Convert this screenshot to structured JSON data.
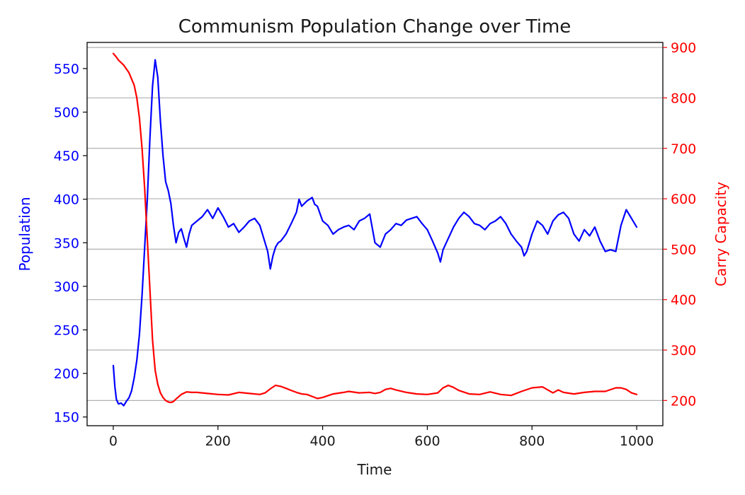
{
  "chart_data": {
    "type": "line",
    "title": "Communism Population Change over Time",
    "xlabel": "Time",
    "ylabel_left": "Population",
    "ylabel_right": "Carry Capacity",
    "xlim": [
      -50,
      1050
    ],
    "ylim_left": [
      140,
      580
    ],
    "ylim_right": [
      150,
      910
    ],
    "x_ticks": [
      0,
      200,
      400,
      600,
      800,
      1000
    ],
    "y_ticks_left": [
      150,
      200,
      250,
      300,
      350,
      400,
      450,
      500,
      550
    ],
    "y_ticks_right": [
      200,
      300,
      400,
      500,
      600,
      700,
      800,
      900
    ],
    "grid": "horizontal (right axis)",
    "colors": {
      "population": "#0000ff",
      "carry_capacity": "#ff0000",
      "text": "#1a1a1a"
    },
    "series": [
      {
        "axis": "left",
        "color": "#0000ff",
        "x": [
          0,
          3,
          6,
          10,
          15,
          20,
          25,
          30,
          35,
          40,
          45,
          50,
          55,
          60,
          65,
          70,
          75,
          80,
          85,
          90,
          95,
          100,
          105,
          110,
          115,
          120,
          125,
          130,
          135,
          140,
          145,
          150,
          160,
          170,
          180,
          190,
          200,
          210,
          220,
          230,
          240,
          250,
          260,
          270,
          280,
          290,
          295,
          300,
          305,
          310,
          315,
          320,
          330,
          340,
          350,
          355,
          360,
          370,
          380,
          385,
          390,
          400,
          410,
          420,
          430,
          440,
          450,
          460,
          470,
          480,
          490,
          500,
          510,
          520,
          530,
          540,
          550,
          560,
          570,
          580,
          590,
          600,
          610,
          620,
          625,
          630,
          640,
          650,
          660,
          670,
          680,
          690,
          700,
          710,
          720,
          730,
          740,
          750,
          760,
          770,
          780,
          785,
          790,
          800,
          810,
          820,
          830,
          840,
          850,
          860,
          870,
          880,
          890,
          900,
          910,
          920,
          930,
          940,
          950,
          960,
          970,
          980,
          990,
          1000
        ],
        "values": [
          209,
          185,
          170,
          165,
          166,
          163,
          168,
          172,
          180,
          195,
          215,
          245,
          290,
          345,
          400,
          470,
          530,
          560,
          540,
          490,
          450,
          420,
          410,
          395,
          370,
          350,
          362,
          366,
          355,
          345,
          360,
          370,
          375,
          380,
          388,
          378,
          390,
          380,
          368,
          372,
          362,
          368,
          375,
          378,
          370,
          350,
          340,
          320,
          335,
          345,
          350,
          352,
          360,
          372,
          385,
          400,
          392,
          398,
          402,
          394,
          392,
          375,
          370,
          360,
          365,
          368,
          370,
          365,
          375,
          378,
          383,
          350,
          345,
          360,
          365,
          372,
          370,
          376,
          378,
          380,
          372,
          365,
          352,
          338,
          328,
          342,
          355,
          368,
          378,
          385,
          380,
          372,
          370,
          365,
          372,
          375,
          380,
          372,
          360,
          352,
          345,
          335,
          340,
          360,
          375,
          370,
          360,
          375,
          382,
          385,
          378,
          360,
          352,
          365,
          358,
          368,
          352,
          340,
          342,
          340,
          370,
          388,
          378,
          368
        ]
      },
      {
        "axis": "right",
        "color": "#ff0000",
        "x": [
          0,
          5,
          10,
          20,
          30,
          40,
          45,
          50,
          55,
          60,
          65,
          70,
          75,
          80,
          85,
          90,
          95,
          100,
          105,
          110,
          115,
          120,
          130,
          140,
          150,
          160,
          180,
          200,
          220,
          240,
          260,
          280,
          290,
          300,
          310,
          320,
          330,
          340,
          350,
          360,
          370,
          380,
          390,
          400,
          420,
          440,
          450,
          470,
          490,
          500,
          510,
          520,
          530,
          540,
          560,
          580,
          600,
          620,
          630,
          640,
          650,
          660,
          680,
          700,
          720,
          740,
          760,
          780,
          800,
          820,
          840,
          850,
          860,
          880,
          900,
          920,
          940,
          960,
          970,
          980,
          990,
          1000
        ],
        "values": [
          888,
          882,
          875,
          865,
          850,
          825,
          800,
          760,
          700,
          620,
          520,
          420,
          320,
          260,
          232,
          215,
          206,
          200,
          197,
          196,
          198,
          203,
          212,
          217,
          216,
          216,
          214,
          212,
          211,
          216,
          214,
          212,
          215,
          223,
          230,
          228,
          224,
          220,
          216,
          213,
          212,
          208,
          204,
          206,
          213,
          216,
          218,
          215,
          216,
          214,
          216,
          222,
          224,
          221,
          216,
          213,
          212,
          215,
          225,
          230,
          226,
          220,
          213,
          212,
          217,
          212,
          210,
          218,
          225,
          227,
          215,
          221,
          216,
          213,
          216,
          218,
          218,
          225,
          225,
          222,
          215,
          212
        ]
      }
    ]
  }
}
